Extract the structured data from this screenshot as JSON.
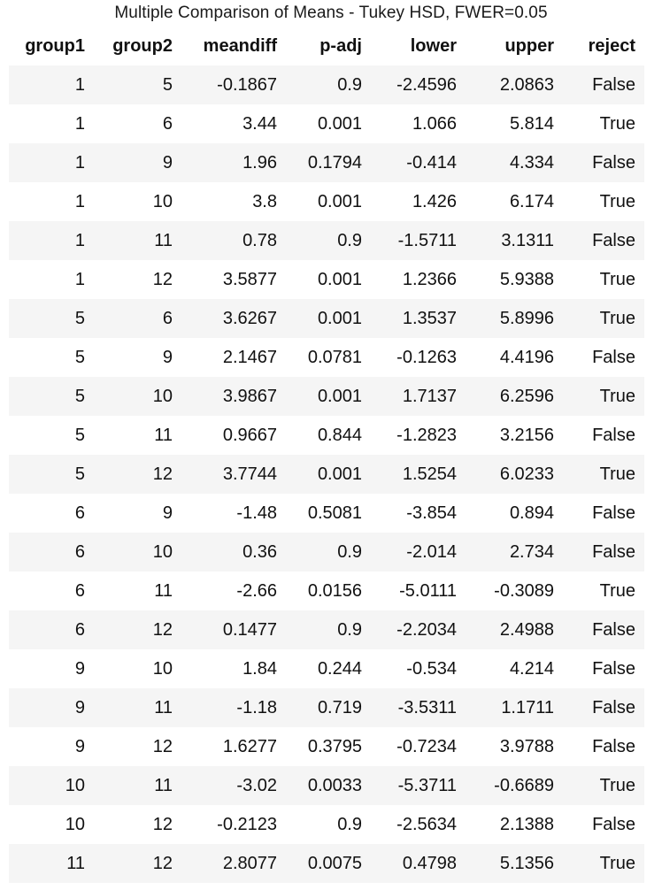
{
  "caption": "Multiple Comparison of Means - Tukey HSD, FWER=0.05",
  "table": {
    "headers": [
      "group1",
      "group2",
      "meandiff",
      "p-adj",
      "lower",
      "upper",
      "reject"
    ],
    "rows": [
      [
        "1",
        "5",
        "-0.1867",
        "0.9",
        "-2.4596",
        "2.0863",
        "False"
      ],
      [
        "1",
        "6",
        "3.44",
        "0.001",
        "1.066",
        "5.814",
        "True"
      ],
      [
        "1",
        "9",
        "1.96",
        "0.1794",
        "-0.414",
        "4.334",
        "False"
      ],
      [
        "1",
        "10",
        "3.8",
        "0.001",
        "1.426",
        "6.174",
        "True"
      ],
      [
        "1",
        "11",
        "0.78",
        "0.9",
        "-1.5711",
        "3.1311",
        "False"
      ],
      [
        "1",
        "12",
        "3.5877",
        "0.001",
        "1.2366",
        "5.9388",
        "True"
      ],
      [
        "5",
        "6",
        "3.6267",
        "0.001",
        "1.3537",
        "5.8996",
        "True"
      ],
      [
        "5",
        "9",
        "2.1467",
        "0.0781",
        "-0.1263",
        "4.4196",
        "False"
      ],
      [
        "5",
        "10",
        "3.9867",
        "0.001",
        "1.7137",
        "6.2596",
        "True"
      ],
      [
        "5",
        "11",
        "0.9667",
        "0.844",
        "-1.2823",
        "3.2156",
        "False"
      ],
      [
        "5",
        "12",
        "3.7744",
        "0.001",
        "1.5254",
        "6.0233",
        "True"
      ],
      [
        "6",
        "9",
        "-1.48",
        "0.5081",
        "-3.854",
        "0.894",
        "False"
      ],
      [
        "6",
        "10",
        "0.36",
        "0.9",
        "-2.014",
        "2.734",
        "False"
      ],
      [
        "6",
        "11",
        "-2.66",
        "0.0156",
        "-5.0111",
        "-0.3089",
        "True"
      ],
      [
        "6",
        "12",
        "0.1477",
        "0.9",
        "-2.2034",
        "2.4988",
        "False"
      ],
      [
        "9",
        "10",
        "1.84",
        "0.244",
        "-0.534",
        "4.214",
        "False"
      ],
      [
        "9",
        "11",
        "-1.18",
        "0.719",
        "-3.5311",
        "1.1711",
        "False"
      ],
      [
        "9",
        "12",
        "1.6277",
        "0.3795",
        "-0.7234",
        "3.9788",
        "False"
      ],
      [
        "10",
        "11",
        "-3.02",
        "0.0033",
        "-5.3711",
        "-0.6689",
        "True"
      ],
      [
        "10",
        "12",
        "-0.2123",
        "0.9",
        "-2.5634",
        "2.1388",
        "False"
      ],
      [
        "11",
        "12",
        "2.8077",
        "0.0075",
        "0.4798",
        "5.1356",
        "True"
      ]
    ]
  }
}
